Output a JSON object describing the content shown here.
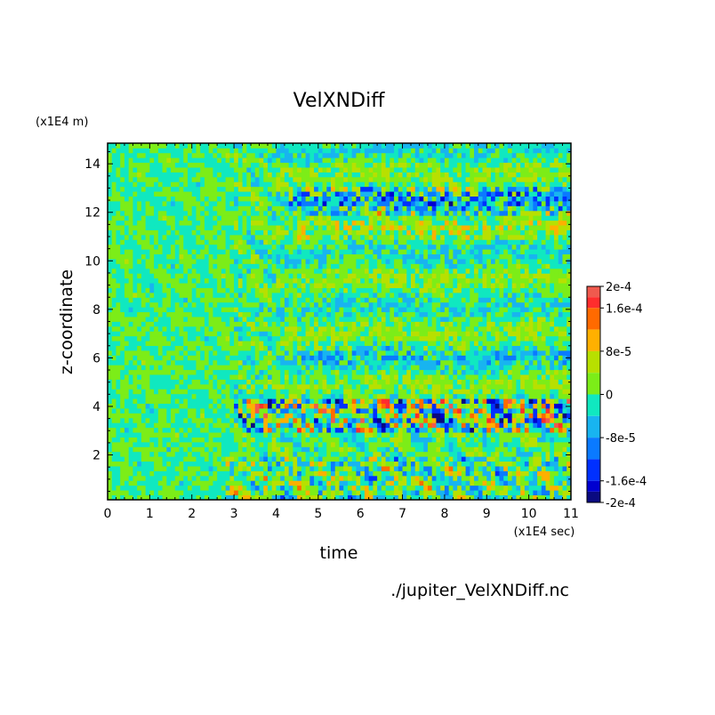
{
  "chart_data": {
    "type": "heatmap",
    "title": "VelXNDiff",
    "xlabel": "time",
    "ylabel": "z-coordinate",
    "x_unit": "(x1E4 sec)",
    "y_unit": "(x1E4 m)",
    "xlim": [
      0,
      11
    ],
    "ylim": [
      0.15,
      14.85
    ],
    "x_ticks": [
      "0",
      "1",
      "2",
      "3",
      "4",
      "5",
      "6",
      "7",
      "8",
      "9",
      "10",
      "11"
    ],
    "y_ticks": [
      "2",
      "4",
      "6",
      "8",
      "10",
      "12",
      "14"
    ],
    "colorbar": {
      "labels": [
        "2e-4",
        "1.6e-4",
        "8e-5",
        "0",
        "-8e-5",
        "-1.6e-4",
        "-2e-4"
      ],
      "levels": [
        {
          "min": 0.00018,
          "max": 0.0002,
          "color": "#f05a4e"
        },
        {
          "min": 0.00016,
          "max": 0.00018,
          "color": "#ff2d2d"
        },
        {
          "min": 0.00012,
          "max": 0.00016,
          "color": "#ff6a00"
        },
        {
          "min": 8e-05,
          "max": 0.00012,
          "color": "#ffb000"
        },
        {
          "min": 4e-05,
          "max": 8e-05,
          "color": "#b8e000"
        },
        {
          "min": 0,
          "max": 4e-05,
          "color": "#7ced18"
        },
        {
          "min": -4e-05,
          "max": 0,
          "color": "#10e8c0"
        },
        {
          "min": -8e-05,
          "max": -4e-05,
          "color": "#18b4f0"
        },
        {
          "min": -0.00012,
          "max": -8e-05,
          "color": "#0a7aff"
        },
        {
          "min": -0.00016,
          "max": -0.00012,
          "color": "#0030ff"
        },
        {
          "min": -0.00018,
          "max": -0.00016,
          "color": "#0000d0"
        },
        {
          "min": -0.0002,
          "max": -0.00018,
          "color": "#0a0a80"
        }
      ]
    },
    "annotation": "./jupiter_VelXNDiff.nc"
  }
}
